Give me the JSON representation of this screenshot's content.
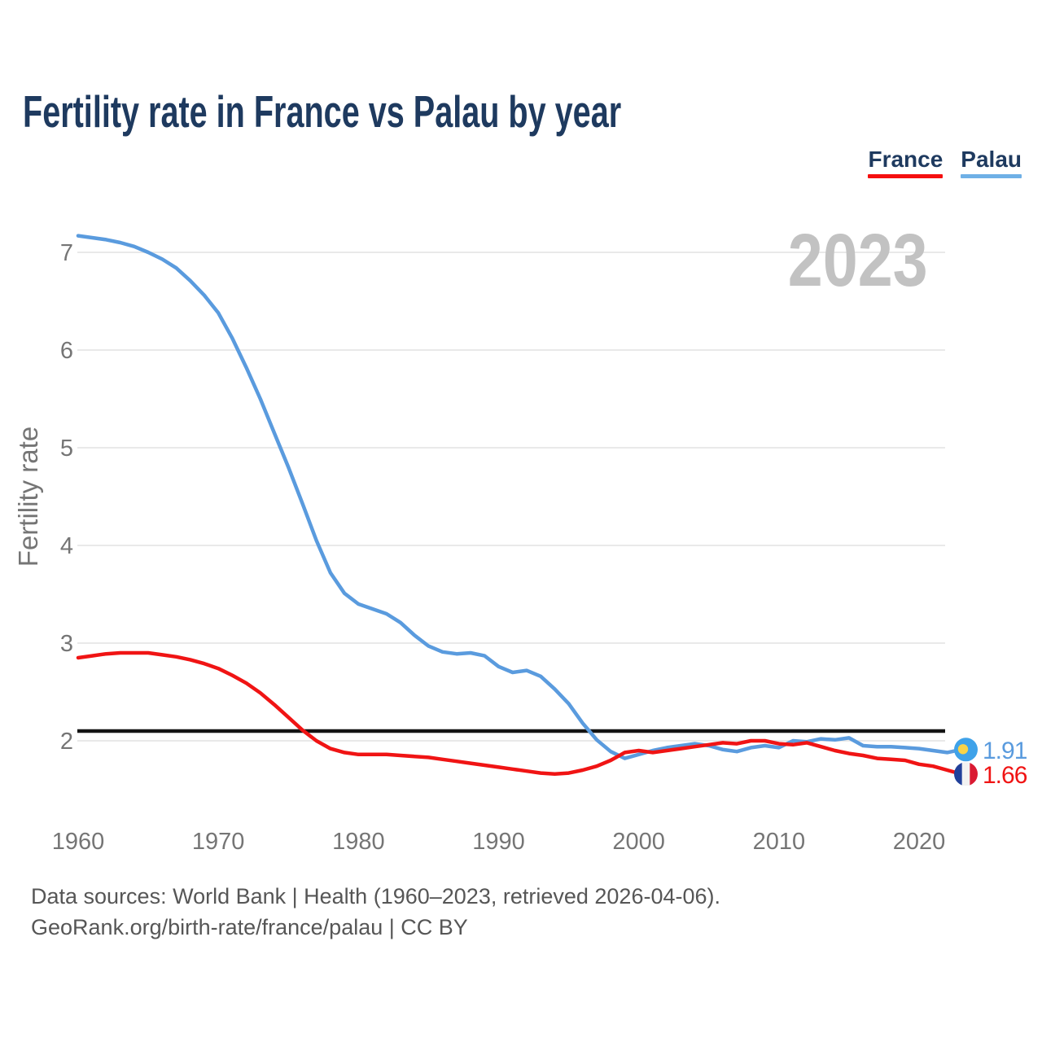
{
  "header": {
    "title": "Fertility rate in France vs Palau by year"
  },
  "legend": {
    "items": [
      {
        "label": "France",
        "color": "#F50F0F"
      },
      {
        "label": "Palau",
        "color": "#6FB0E6"
      }
    ]
  },
  "watermark": {
    "text": "2023"
  },
  "footer": {
    "line1": "Data sources: World Bank | Health (1960–2023, retrieved 2026-04-06).",
    "line2": "GeoRank.org/birth-rate/france/palau | CC BY"
  },
  "chart_data": {
    "type": "line",
    "title": "Fertility rate in France vs Palau by year",
    "xlabel": "",
    "ylabel": "Fertility rate",
    "grid": "horizontal",
    "legend_position": "top-right",
    "ylim": [
      1.4,
      7.5
    ],
    "yticks": [
      2,
      3,
      4,
      5,
      6,
      7
    ],
    "xticks": [
      1960,
      1970,
      1980,
      1990,
      2000,
      2010,
      2020
    ],
    "x": [
      1960,
      1961,
      1962,
      1963,
      1964,
      1965,
      1966,
      1967,
      1968,
      1969,
      1970,
      1971,
      1972,
      1973,
      1974,
      1975,
      1976,
      1977,
      1978,
      1979,
      1980,
      1981,
      1982,
      1983,
      1984,
      1985,
      1986,
      1987,
      1988,
      1989,
      1990,
      1991,
      1992,
      1993,
      1994,
      1995,
      1996,
      1997,
      1998,
      1999,
      2000,
      2001,
      2002,
      2003,
      2004,
      2005,
      2006,
      2007,
      2008,
      2009,
      2010,
      2011,
      2012,
      2013,
      2014,
      2015,
      2016,
      2017,
      2018,
      2019,
      2020,
      2021,
      2022,
      2023
    ],
    "series": [
      {
        "name": "France",
        "color": "#F01414",
        "values": [
          2.85,
          2.87,
          2.89,
          2.9,
          2.9,
          2.9,
          2.88,
          2.86,
          2.83,
          2.79,
          2.74,
          2.67,
          2.59,
          2.49,
          2.37,
          2.24,
          2.11,
          2.0,
          1.92,
          1.88,
          1.86,
          1.86,
          1.86,
          1.85,
          1.84,
          1.83,
          1.81,
          1.79,
          1.77,
          1.75,
          1.73,
          1.71,
          1.69,
          1.67,
          1.66,
          1.67,
          1.7,
          1.74,
          1.8,
          1.88,
          1.9,
          1.88,
          1.9,
          1.92,
          1.94,
          1.96,
          1.98,
          1.97,
          2.0,
          2.0,
          1.97,
          1.96,
          1.98,
          1.94,
          1.9,
          1.87,
          1.85,
          1.82,
          1.81,
          1.8,
          1.76,
          1.74,
          1.7,
          1.66
        ]
      },
      {
        "name": "Palau",
        "color": "#5A9BDE",
        "values": [
          7.17,
          7.15,
          7.13,
          7.1,
          7.06,
          7.0,
          6.93,
          6.84,
          6.71,
          6.56,
          6.38,
          6.12,
          5.82,
          5.5,
          5.15,
          4.8,
          4.43,
          4.05,
          3.72,
          3.51,
          3.4,
          3.35,
          3.3,
          3.21,
          3.08,
          2.97,
          2.91,
          2.89,
          2.9,
          2.87,
          2.76,
          2.7,
          2.72,
          2.66,
          2.53,
          2.38,
          2.18,
          2.01,
          1.89,
          1.82,
          1.86,
          1.9,
          1.93,
          1.95,
          1.97,
          1.95,
          1.91,
          1.89,
          1.93,
          1.95,
          1.93,
          2.0,
          1.99,
          2.02,
          2.01,
          2.03,
          1.95,
          1.94,
          1.94,
          1.93,
          1.92,
          1.9,
          1.88,
          1.91
        ]
      }
    ],
    "reference_line": {
      "value": 2.1,
      "color": "#141414"
    },
    "end_labels": [
      {
        "series": "Palau",
        "value": "1.91",
        "flag": "palau"
      },
      {
        "series": "France",
        "value": "1.66",
        "flag": "france"
      }
    ]
  }
}
